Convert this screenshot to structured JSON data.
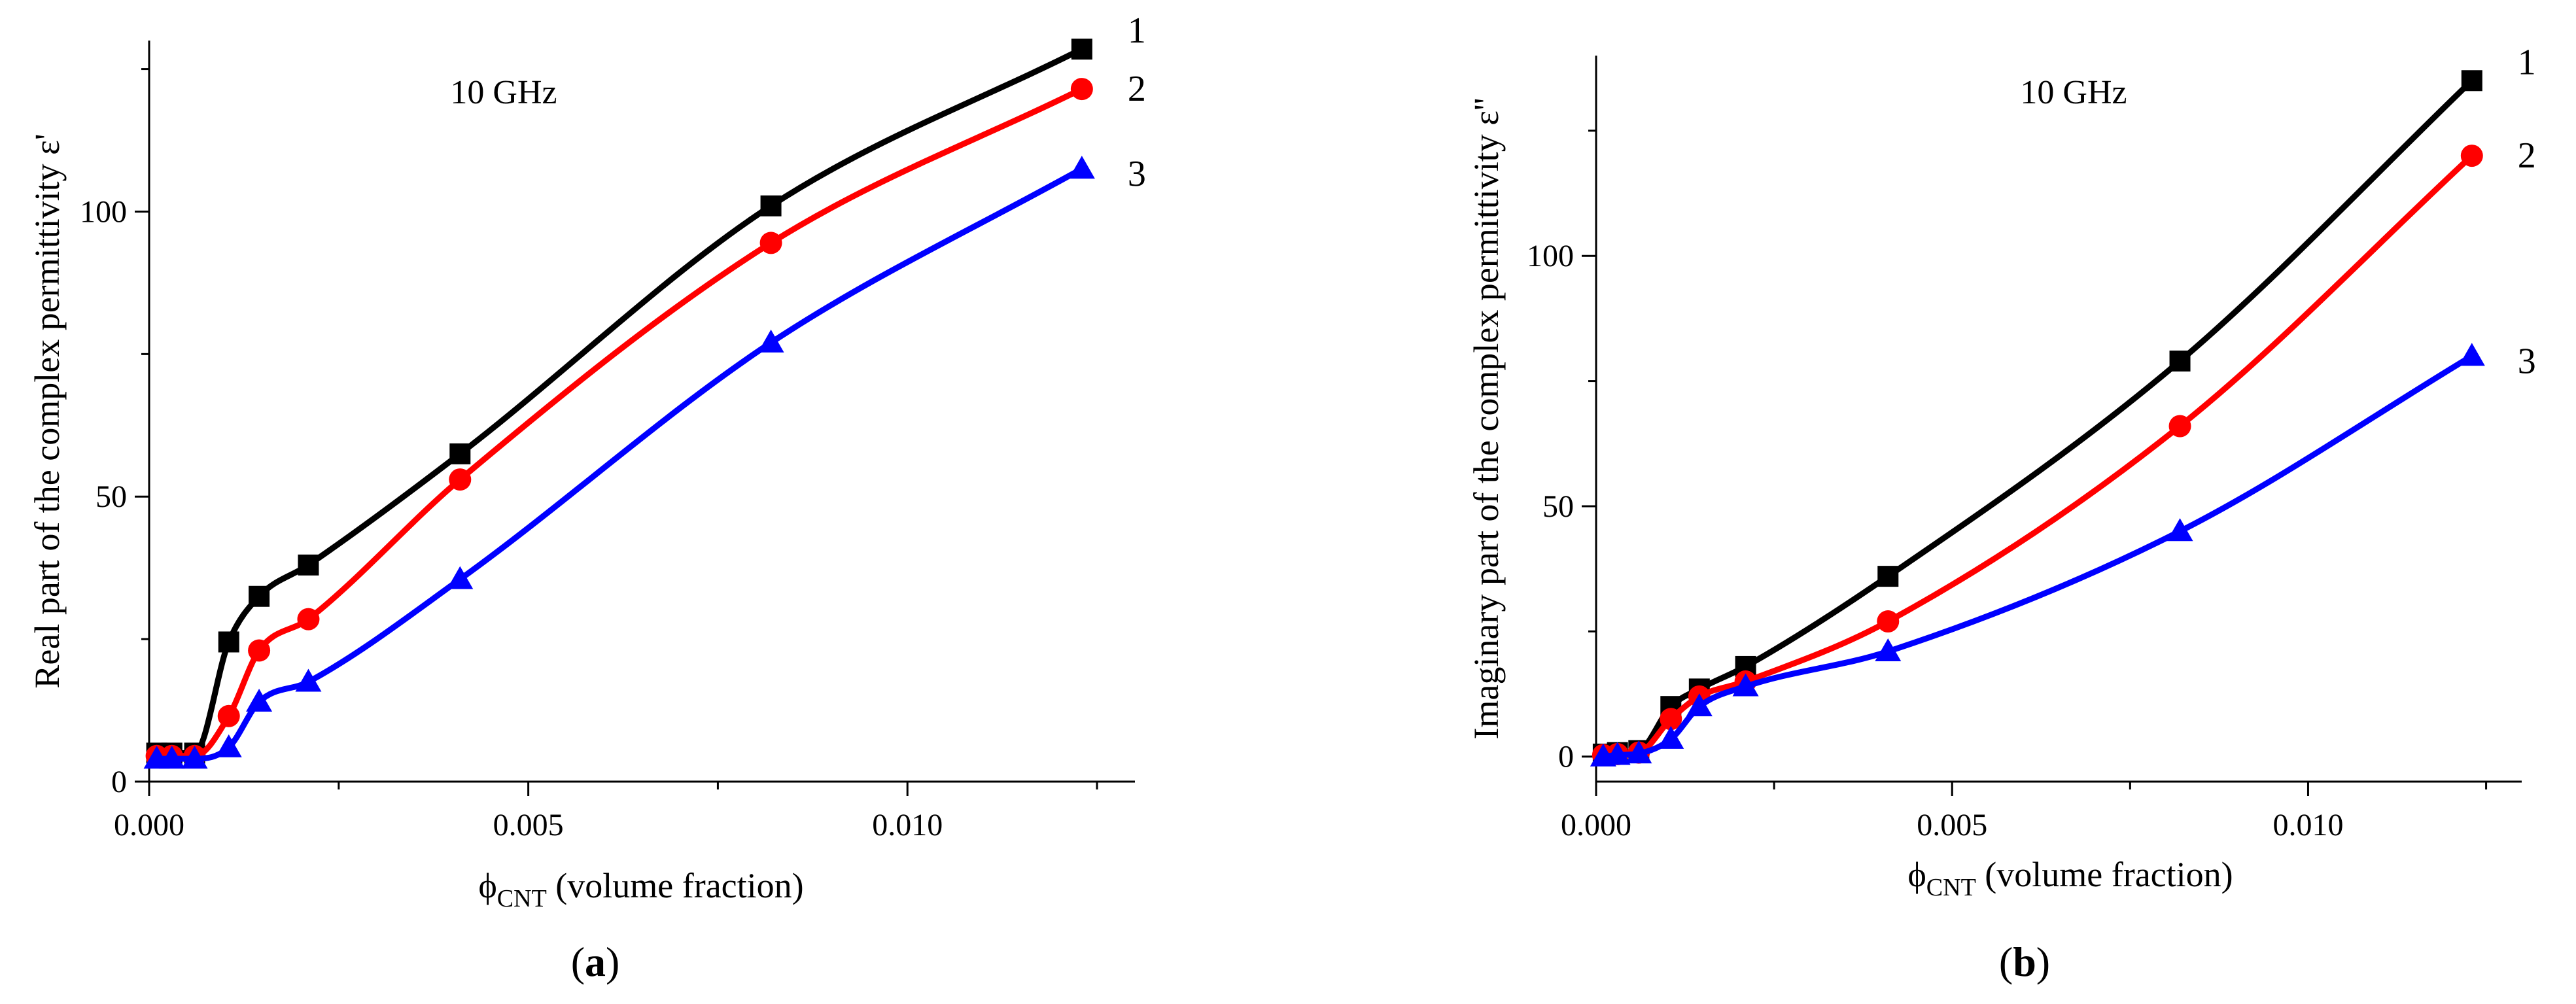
{
  "chart_data": [
    {
      "type": "line",
      "panel_label": "(a)",
      "panel_letter": "a",
      "annotation": "10 GHz",
      "xlabel": {
        "symbol": "ϕ",
        "subscript": "CNT",
        "rest": " (volume fraction)"
      },
      "ylabel": "Real part of the complex  permittivity  ε'",
      "xlim": [
        0,
        0.013
      ],
      "ylim": [
        0,
        130
      ],
      "xticks": [
        0,
        0.005,
        0.01
      ],
      "xtick_labels": [
        "0.000",
        "0.005",
        "0.010"
      ],
      "yticks": [
        0,
        50,
        100
      ],
      "ytick_labels": [
        "0",
        "50",
        "100"
      ],
      "legend_position": "right of line ends",
      "series": [
        {
          "name": "1",
          "marker": "square",
          "color": "#000000",
          "x": [
            0.0001,
            0.0003,
            0.0006,
            0.00105,
            0.00145,
            0.0021,
            0.0041,
            0.0082,
            0.0123
          ],
          "y": [
            5,
            5,
            5,
            24.5,
            32.5,
            38,
            57.5,
            101,
            128.5
          ]
        },
        {
          "name": "2",
          "marker": "circle",
          "color": "#ff0000",
          "x": [
            0.0001,
            0.0003,
            0.0006,
            0.00105,
            0.00145,
            0.0021,
            0.0041,
            0.0082,
            0.0123
          ],
          "y": [
            4.5,
            4.5,
            4.5,
            11.5,
            23,
            28.5,
            53,
            94.5,
            121.5
          ]
        },
        {
          "name": "3",
          "marker": "triangle",
          "color": "#0000ff",
          "x": [
            0.0001,
            0.0003,
            0.0006,
            0.00105,
            0.00145,
            0.0021,
            0.0041,
            0.0082,
            0.0123
          ],
          "y": [
            4,
            4,
            4,
            6,
            14,
            17.5,
            35.5,
            77,
            107.5
          ]
        }
      ]
    },
    {
      "type": "line",
      "panel_label": "(b)",
      "panel_letter": "b",
      "annotation": "10 GHz",
      "xlabel": {
        "symbol": "ϕ",
        "subscript": "CNT",
        "rest": " (volume fraction)"
      },
      "ylabel": "Imaginary part of the complex permittivity ε''",
      "xlim": [
        0,
        0.013
      ],
      "ylim": [
        -5,
        140
      ],
      "xticks": [
        0,
        0.005,
        0.01
      ],
      "xtick_labels": [
        "0.000",
        "0.005",
        "0.010"
      ],
      "yticks": [
        0,
        50,
        100
      ],
      "ytick_labels": [
        "0",
        "50",
        "100"
      ],
      "legend_position": "right of line ends",
      "series": [
        {
          "name": "1",
          "marker": "square",
          "color": "#000000",
          "x": [
            0.0001,
            0.0003,
            0.0006,
            0.00105,
            0.00145,
            0.0021,
            0.0041,
            0.0082,
            0.0123
          ],
          "y": [
            0.5,
            0.8,
            1.2,
            10,
            13.5,
            18,
            36,
            79,
            135
          ]
        },
        {
          "name": "2",
          "marker": "circle",
          "color": "#ff0000",
          "x": [
            0.0001,
            0.0003,
            0.0006,
            0.00105,
            0.00145,
            0.0021,
            0.0041,
            0.0082,
            0.0123
          ],
          "y": [
            0.3,
            0.5,
            0.8,
            7.5,
            12,
            15,
            27,
            66,
            120
          ]
        },
        {
          "name": "3",
          "marker": "triangle",
          "color": "#0000ff",
          "x": [
            0.0001,
            0.0003,
            0.0006,
            0.00105,
            0.00145,
            0.0021,
            0.0041,
            0.0082,
            0.0123
          ],
          "y": [
            0,
            0.3,
            0.6,
            3.5,
            10,
            14,
            21,
            45,
            80
          ]
        }
      ]
    }
  ]
}
